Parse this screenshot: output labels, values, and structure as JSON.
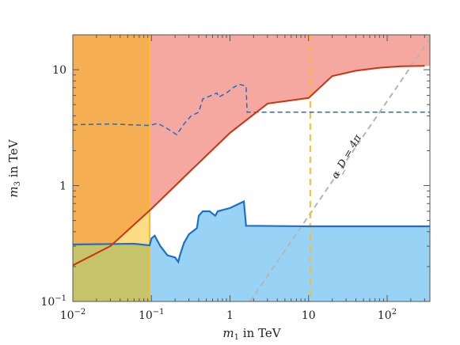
{
  "chart_data": {
    "type": "area",
    "title": "",
    "xlabel": "m_1 in TeV",
    "ylabel": "m_3 in TeV",
    "xscale": "log",
    "yscale": "log",
    "xlim": [
      0.01,
      350
    ],
    "ylim": [
      0.1,
      20
    ],
    "grid": false,
    "x_ticks": [
      {
        "value": 0.01,
        "base": "10",
        "exp": "−2"
      },
      {
        "value": 0.1,
        "base": "10",
        "exp": "−1"
      },
      {
        "value": 1,
        "base": "1",
        "exp": ""
      },
      {
        "value": 10,
        "base": "10",
        "exp": ""
      },
      {
        "value": 100,
        "base": "10",
        "exp": "2"
      }
    ],
    "y_ticks": [
      {
        "value": 0.1,
        "base": "10",
        "exp": "−1"
      },
      {
        "value": 1,
        "base": "1",
        "exp": ""
      },
      {
        "value": 10,
        "base": "10",
        "exp": ""
      }
    ],
    "annotation": "α_D = 4π",
    "colors": {
      "red_region": "#f4a8a0",
      "orange_region": "#f5ae52",
      "blue_region": "#98d3f6",
      "yellow_region": "#fddc86",
      "olive_region": "#c6c46a",
      "red_line": "#cc3311",
      "blue_line": "#1e6fc6",
      "orange_line": "#ffbb22",
      "gray_line": "#b5b5b5"
    },
    "series": [
      {
        "style": "solid red boundary",
        "points": [
          [
            0.01,
            0.205
          ],
          [
            0.03,
            0.3
          ],
          [
            0.1,
            0.63
          ],
          [
            0.3,
            1.3
          ],
          [
            1,
            2.85
          ],
          [
            3,
            5.1
          ],
          [
            10,
            5.7
          ],
          [
            20,
            8.8
          ],
          [
            40,
            9.8
          ],
          [
            80,
            10.4
          ],
          [
            150,
            10.7
          ],
          [
            300,
            10.8
          ]
        ]
      },
      {
        "style": "dashed blue boundary",
        "points": [
          [
            0.01,
            3.35
          ],
          [
            0.03,
            3.4
          ],
          [
            0.095,
            3.3
          ],
          [
            0.12,
            3.45
          ],
          [
            0.16,
            3.1
          ],
          [
            0.21,
            2.75
          ],
          [
            0.26,
            3.4
          ],
          [
            0.32,
            4.0
          ],
          [
            0.4,
            4.3
          ],
          [
            0.45,
            5.6
          ],
          [
            0.55,
            5.9
          ],
          [
            0.68,
            6.3
          ],
          [
            0.72,
            5.8
          ],
          [
            0.9,
            6.3
          ],
          [
            1.1,
            7.0
          ],
          [
            1.3,
            7.5
          ],
          [
            1.6,
            7.2
          ],
          [
            1.65,
            4.3
          ],
          [
            10,
            4.3
          ],
          [
            350,
            4.3
          ]
        ]
      },
      {
        "style": "solid blue boundary",
        "points": [
          [
            0.01,
            0.31
          ],
          [
            0.06,
            0.315
          ],
          [
            0.095,
            0.305
          ],
          [
            0.1,
            0.35
          ],
          [
            0.11,
            0.37
          ],
          [
            0.13,
            0.3
          ],
          [
            0.16,
            0.25
          ],
          [
            0.2,
            0.24
          ],
          [
            0.22,
            0.22
          ],
          [
            0.23,
            0.25
          ],
          [
            0.26,
            0.32
          ],
          [
            0.3,
            0.38
          ],
          [
            0.38,
            0.43
          ],
          [
            0.4,
            0.55
          ],
          [
            0.45,
            0.6
          ],
          [
            0.55,
            0.6
          ],
          [
            0.65,
            0.55
          ],
          [
            0.7,
            0.6
          ],
          [
            1.0,
            0.64
          ],
          [
            1.5,
            0.73
          ],
          [
            1.6,
            0.45
          ],
          [
            10,
            0.445
          ],
          [
            350,
            0.445
          ]
        ]
      },
      {
        "style": "dashed gray line",
        "points": [
          [
            1.8,
            0.1
          ],
          [
            350,
            18.5
          ]
        ]
      }
    ],
    "vertical_lines": [
      {
        "x": 0.095,
        "style": "solid orange"
      },
      {
        "x": 10.5,
        "style": "dashed orange"
      }
    ]
  }
}
